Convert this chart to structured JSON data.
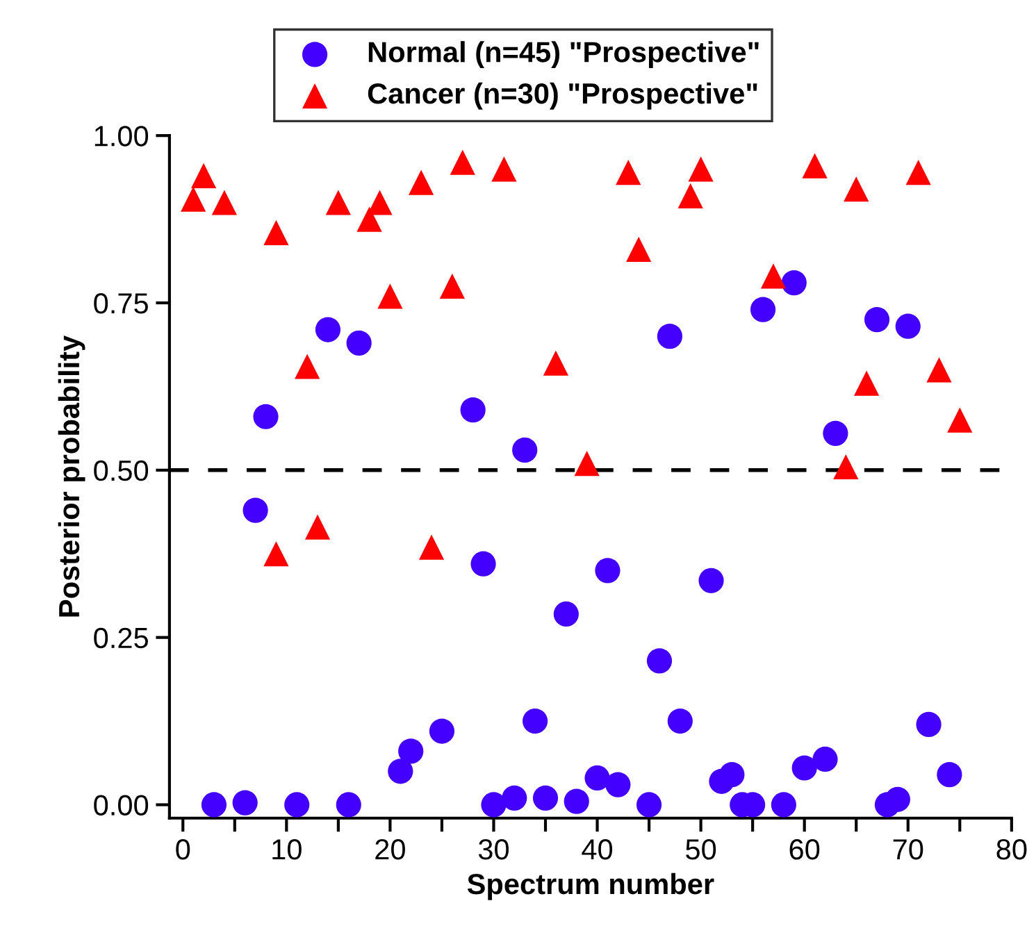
{
  "chart_data": {
    "type": "scatter",
    "xlabel": "Spectrum number",
    "ylabel": "Posterior probability",
    "series": [
      {
        "name": "Normal (n=45) \"Prospective\"",
        "color": "#4400ff",
        "marker": "circle",
        "x": [
          3,
          6,
          7,
          8,
          11,
          14,
          16,
          17,
          21,
          22,
          25,
          28,
          29,
          30,
          32,
          33,
          34,
          35,
          37,
          38,
          40,
          41,
          42,
          45,
          46,
          47,
          48,
          51,
          52,
          53,
          54,
          55,
          56,
          58,
          59,
          60,
          62,
          63,
          67,
          68,
          69,
          70,
          72,
          74
        ],
        "values": [
          0.0,
          0.003,
          0.44,
          0.58,
          0.0,
          0.71,
          0.0,
          0.69,
          0.05,
          0.08,
          0.11,
          0.59,
          0.36,
          0.0,
          0.01,
          0.53,
          0.125,
          0.01,
          0.285,
          0.005,
          0.04,
          0.35,
          0.03,
          0.0,
          0.215,
          0.7,
          0.125,
          0.335,
          0.035,
          0.045,
          0.0,
          0.0,
          0.74,
          0.0,
          0.78,
          0.055,
          0.068,
          0.555,
          0.725,
          0.0,
          0.008,
          0.715,
          0.12,
          0.045
        ]
      },
      {
        "name": "Cancer (n=30) \"Prospective\"",
        "color": "#ff0000",
        "marker": "triangle",
        "x": [
          1,
          2,
          4,
          9,
          9,
          12,
          13,
          15,
          18,
          19,
          20,
          23,
          24,
          26,
          27,
          31,
          36,
          39,
          43,
          44,
          49,
          50,
          57,
          61,
          64,
          65,
          66,
          71,
          73,
          75
        ],
        "values": [
          0.905,
          0.94,
          0.9,
          0.855,
          0.375,
          0.655,
          0.415,
          0.9,
          0.875,
          0.9,
          0.76,
          0.93,
          0.385,
          0.775,
          0.96,
          0.95,
          0.66,
          0.51,
          0.945,
          0.83,
          0.91,
          0.95,
          0.79,
          0.955,
          0.505,
          0.92,
          0.63,
          0.945,
          0.65,
          0.575
        ]
      }
    ],
    "xlim": [
      -1.3,
      80
    ],
    "xticks": [
      0,
      {
        "value": 5,
        "label": null
      },
      10,
      {
        "value": 15,
        "label": null
      },
      20,
      {
        "value": 25,
        "label": null
      },
      30,
      {
        "value": 35,
        "label": null
      },
      40,
      {
        "value": 45,
        "label": null
      },
      50,
      {
        "value": 55,
        "label": null
      },
      60,
      {
        "value": 65,
        "label": null
      },
      70,
      {
        "value": 75,
        "label": null
      },
      80
    ],
    "ylim": [
      -0.02,
      1.0
    ],
    "yticks": [
      {
        "value": 0,
        "label": "0.00"
      },
      {
        "value": 0.25,
        "label": "0.25"
      },
      {
        "value": 0.5,
        "label": "0.50"
      },
      {
        "value": 0.75,
        "label": "0.75"
      },
      {
        "value": 1.0,
        "label": "1.00"
      }
    ],
    "ref_lines": [
      {
        "axis": "y",
        "value": 0.5,
        "color": "#000000",
        "line_style": "dashed"
      }
    ],
    "grid": false,
    "legend": "top"
  }
}
